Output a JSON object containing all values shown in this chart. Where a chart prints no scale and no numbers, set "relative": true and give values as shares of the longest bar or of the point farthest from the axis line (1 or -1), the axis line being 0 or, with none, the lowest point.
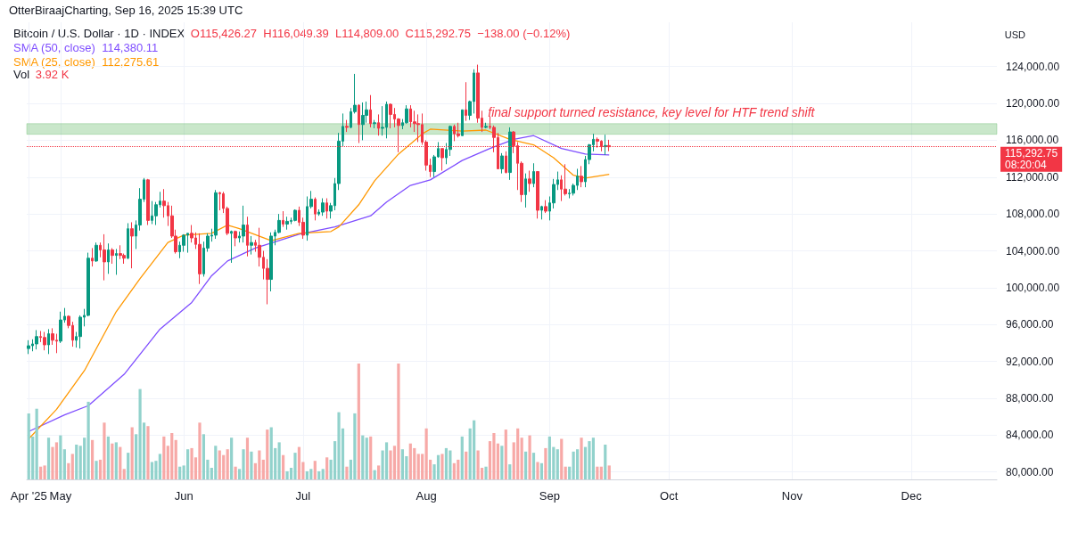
{
  "chart_data": [
    {
      "type": "candlestick",
      "title": "Bitcoin / U.S. Dollar · 1D · INDEX",
      "subtitle": "OtterBiraajCharting, Sep 16, 2025 15:39 UTC",
      "ylabel": "USD",
      "x": [
        "2025-04-23",
        "2025-04-24",
        "2025-04-25",
        "2025-04-26",
        "2025-04-27",
        "2025-04-28",
        "2025-04-29",
        "2025-04-30",
        "2025-05-01",
        "2025-05-02",
        "2025-05-03",
        "2025-05-04",
        "2025-05-05",
        "2025-05-06",
        "2025-05-07",
        "2025-05-08",
        "2025-05-09",
        "2025-05-10",
        "2025-05-11",
        "2025-05-12",
        "2025-05-13",
        "2025-05-14",
        "2025-05-15",
        "2025-05-16",
        "2025-05-17",
        "2025-05-18",
        "2025-05-19",
        "2025-05-20",
        "2025-05-21",
        "2025-05-22",
        "2025-05-23",
        "2025-05-24",
        "2025-05-25",
        "2025-05-26",
        "2025-05-27",
        "2025-05-28",
        "2025-05-29",
        "2025-05-30",
        "2025-05-31",
        "2025-06-01",
        "2025-06-02",
        "2025-06-03",
        "2025-06-04",
        "2025-06-05",
        "2025-06-06",
        "2025-06-07",
        "2025-06-08",
        "2025-06-09",
        "2025-06-10",
        "2025-06-11",
        "2025-06-12",
        "2025-06-13",
        "2025-06-14",
        "2025-06-15",
        "2025-06-16",
        "2025-06-17",
        "2025-06-18",
        "2025-06-19",
        "2025-06-20",
        "2025-06-21",
        "2025-06-22",
        "2025-06-23",
        "2025-06-24",
        "2025-06-25",
        "2025-06-26",
        "2025-06-27",
        "2025-06-28",
        "2025-06-29",
        "2025-06-30",
        "2025-07-01",
        "2025-07-02",
        "2025-07-03",
        "2025-07-04",
        "2025-07-05",
        "2025-07-06",
        "2025-07-07",
        "2025-07-08",
        "2025-07-09",
        "2025-07-10",
        "2025-07-11",
        "2025-07-12",
        "2025-07-13",
        "2025-07-14",
        "2025-07-15",
        "2025-07-16",
        "2025-07-17",
        "2025-07-18",
        "2025-07-19",
        "2025-07-20",
        "2025-07-21",
        "2025-07-22",
        "2025-07-23",
        "2025-07-24",
        "2025-07-25",
        "2025-07-26",
        "2025-07-27",
        "2025-07-28",
        "2025-07-29",
        "2025-07-30",
        "2025-07-31",
        "2025-08-01",
        "2025-08-02",
        "2025-08-03",
        "2025-08-04",
        "2025-08-05",
        "2025-08-06",
        "2025-08-07",
        "2025-08-08",
        "2025-08-09",
        "2025-08-10",
        "2025-08-11",
        "2025-08-12",
        "2025-08-13",
        "2025-08-14",
        "2025-08-15",
        "2025-08-16",
        "2025-08-17",
        "2025-08-18",
        "2025-08-19",
        "2025-08-20",
        "2025-08-21",
        "2025-08-22",
        "2025-08-23",
        "2025-08-24",
        "2025-08-25",
        "2025-08-26",
        "2025-08-27",
        "2025-08-28",
        "2025-08-29",
        "2025-08-30",
        "2025-08-31",
        "2025-09-01",
        "2025-09-02",
        "2025-09-03",
        "2025-09-04",
        "2025-09-05",
        "2025-09-06",
        "2025-09-07",
        "2025-09-08",
        "2025-09-09",
        "2025-09-10",
        "2025-09-11",
        "2025-09-12",
        "2025-09-13",
        "2025-09-14",
        "2025-09-15",
        "2025-09-16"
      ],
      "ohlc": [
        [
          93400,
          94300,
          92800,
          93700
        ],
        [
          93700,
          94400,
          93100,
          93900
        ],
        [
          93900,
          95400,
          93300,
          94700
        ],
        [
          94700,
          95300,
          94100,
          94600
        ],
        [
          94600,
          95200,
          93200,
          93800
        ],
        [
          93800,
          95500,
          92800,
          95000
        ],
        [
          95000,
          95600,
          93800,
          94300
        ],
        [
          94300,
          95000,
          92900,
          94200
        ],
        [
          94200,
          97400,
          94000,
          96500
        ],
        [
          96500,
          97800,
          96200,
          96900
        ],
        [
          96900,
          97000,
          95600,
          95900
        ],
        [
          95900,
          96300,
          93600,
          94300
        ],
        [
          94300,
          95200,
          93500,
          94700
        ],
        [
          94700,
          97000,
          93400,
          96800
        ],
        [
          96800,
          97700,
          95800,
          97000
        ],
        [
          97000,
          103800,
          96900,
          103200
        ],
        [
          103200,
          104300,
          102300,
          102900
        ],
        [
          102900,
          104900,
          102800,
          104600
        ],
        [
          104600,
          104900,
          103300,
          104100
        ],
        [
          104100,
          105800,
          100800,
          102800
        ],
        [
          102800,
          104800,
          101500,
          104100
        ],
        [
          104100,
          104300,
          102600,
          103500
        ],
        [
          103500,
          104200,
          101400,
          103700
        ],
        [
          103700,
          104600,
          103100,
          103500
        ],
        [
          103500,
          103700,
          102600,
          103200
        ],
        [
          103200,
          107000,
          103100,
          106400
        ],
        [
          106400,
          107100,
          102100,
          105600
        ],
        [
          105600,
          107300,
          104200,
          106800
        ],
        [
          106800,
          110800,
          106200,
          109600
        ],
        [
          109600,
          111900,
          109300,
          111700
        ],
        [
          111700,
          111800,
          106800,
          107300
        ],
        [
          107300,
          109400,
          106900,
          107800
        ],
        [
          107800,
          109300,
          106800,
          109000
        ],
        [
          109000,
          110400,
          108700,
          109400
        ],
        [
          109400,
          110700,
          107600,
          108900
        ],
        [
          108900,
          109300,
          106700,
          107800
        ],
        [
          107800,
          108900,
          105400,
          105600
        ],
        [
          105600,
          106300,
          103700,
          103900
        ],
        [
          103900,
          105000,
          103200,
          104600
        ],
        [
          104600,
          105800,
          103900,
          105700
        ],
        [
          105700,
          105900,
          103800,
          105900
        ],
        [
          105900,
          106800,
          104900,
          105400
        ],
        [
          105400,
          106000,
          104200,
          104700
        ],
        [
          104700,
          105900,
          100400,
          101500
        ],
        [
          101500,
          105000,
          101200,
          104300
        ],
        [
          104300,
          105900,
          103900,
          105600
        ],
        [
          105600,
          106400,
          105000,
          105700
        ],
        [
          105700,
          110600,
          105300,
          110300
        ],
        [
          110300,
          110400,
          108400,
          110200
        ],
        [
          110200,
          110400,
          108100,
          108600
        ],
        [
          108600,
          108800,
          105700,
          105900
        ],
        [
          105900,
          106200,
          102700,
          106100
        ],
        [
          106100,
          106200,
          104500,
          105400
        ],
        [
          105400,
          106100,
          104900,
          105600
        ],
        [
          105600,
          108900,
          104900,
          106800
        ],
        [
          106800,
          107700,
          103400,
          104600
        ],
        [
          104600,
          105600,
          103600,
          104900
        ],
        [
          104900,
          105200,
          103900,
          104600
        ],
        [
          104600,
          106500,
          102300,
          103300
        ],
        [
          103300,
          104000,
          100900,
          102100
        ],
        [
          102100,
          103100,
          98200,
          100900
        ],
        [
          100900,
          106000,
          99600,
          105600
        ],
        [
          105600,
          106300,
          104600,
          106000
        ],
        [
          106000,
          108000,
          105900,
          107300
        ],
        [
          107300,
          108300,
          106600,
          106900
        ],
        [
          106900,
          107700,
          106300,
          107200
        ],
        [
          107200,
          107600,
          106900,
          107300
        ],
        [
          107300,
          108500,
          107200,
          108400
        ],
        [
          108400,
          108800,
          106700,
          107100
        ],
        [
          107100,
          107600,
          105300,
          105700
        ],
        [
          105700,
          109900,
          105100,
          108800
        ],
        [
          108800,
          110500,
          108600,
          109600
        ],
        [
          109600,
          109800,
          107300,
          108000
        ],
        [
          108000,
          108500,
          107800,
          108200
        ],
        [
          108200,
          109700,
          107800,
          109200
        ],
        [
          109200,
          109700,
          107500,
          108300
        ],
        [
          108300,
          109200,
          107500,
          108900
        ],
        [
          108900,
          111900,
          108400,
          111300
        ],
        [
          111300,
          116800,
          110600,
          115900
        ],
        [
          115900,
          118900,
          115300,
          117500
        ],
        [
          117500,
          118200,
          116900,
          117400
        ],
        [
          117400,
          119500,
          117300,
          119100
        ],
        [
          119100,
          123200,
          118900,
          119800
        ],
        [
          119800,
          119900,
          115700,
          117700
        ],
        [
          117700,
          120100,
          116000,
          118700
        ],
        [
          118700,
          120200,
          117900,
          119300
        ],
        [
          119300,
          120900,
          117400,
          117800
        ],
        [
          117800,
          118200,
          117300,
          117900
        ],
        [
          117900,
          118800,
          116500,
          117300
        ],
        [
          117300,
          119700,
          116500,
          117400
        ],
        [
          117400,
          120200,
          116200,
          119900
        ],
        [
          119900,
          120000,
          117300,
          118800
        ],
        [
          118800,
          119500,
          117400,
          118300
        ],
        [
          118300,
          118400,
          114700,
          117600
        ],
        [
          117600,
          118300,
          117200,
          117900
        ],
        [
          117900,
          119800,
          117800,
          119400
        ],
        [
          119400,
          119800,
          117400,
          118000
        ],
        [
          118000,
          119200,
          116900,
          117800
        ],
        [
          117800,
          118800,
          115800,
          117700
        ],
        [
          117700,
          118900,
          115500,
          115800
        ],
        [
          115800,
          116000,
          112700,
          113300
        ],
        [
          113300,
          114000,
          112000,
          112600
        ],
        [
          112600,
          114400,
          112000,
          114200
        ],
        [
          114200,
          115800,
          114100,
          115100
        ],
        [
          115100,
          115100,
          112700,
          114100
        ],
        [
          114100,
          115700,
          113400,
          115000
        ],
        [
          115000,
          117600,
          114300,
          117500
        ],
        [
          117500,
          117700,
          115900,
          116700
        ],
        [
          116700,
          117900,
          116300,
          116500
        ],
        [
          116500,
          119300,
          116500,
          119300
        ],
        [
          119300,
          122300,
          118100,
          118700
        ],
        [
          118700,
          120300,
          118200,
          120200
        ],
        [
          120200,
          123700,
          118900,
          123300
        ],
        [
          123300,
          124200,
          117900,
          118400
        ],
        [
          118400,
          119200,
          116900,
          117400
        ],
        [
          117400,
          117900,
          117300,
          117500
        ],
        [
          117500,
          118600,
          117200,
          117400
        ],
        [
          117400,
          117600,
          114700,
          116300
        ],
        [
          116300,
          116800,
          112900,
          112900
        ],
        [
          112900,
          114600,
          112400,
          114300
        ],
        [
          114300,
          114800,
          112400,
          112500
        ],
        [
          112500,
          117400,
          111700,
          116900
        ],
        [
          116900,
          117000,
          114600,
          115400
        ],
        [
          115400,
          115800,
          110600,
          113500
        ],
        [
          113500,
          113700,
          109300,
          110100
        ],
        [
          110100,
          112400,
          108700,
          111800
        ],
        [
          111800,
          112700,
          110400,
          111300
        ],
        [
          111300,
          113500,
          110900,
          112600
        ],
        [
          112600,
          112600,
          107500,
          108400
        ],
        [
          108400,
          108900,
          107400,
          108800
        ],
        [
          108800,
          109500,
          108100,
          108300
        ],
        [
          108300,
          109900,
          107300,
          109200
        ],
        [
          109200,
          111800,
          108600,
          111200
        ],
        [
          111200,
          112600,
          110600,
          111700
        ],
        [
          111700,
          112200,
          109400,
          110700
        ],
        [
          110700,
          113400,
          110000,
          110200
        ],
        [
          110200,
          110700,
          109700,
          110250
        ],
        [
          110250,
          111300,
          110000,
          111100
        ],
        [
          111100,
          112900,
          110600,
          112100
        ],
        [
          112100,
          113200,
          110900,
          111500
        ],
        [
          111500,
          114300,
          110900,
          113900
        ],
        [
          113900,
          115600,
          113400,
          115500
        ],
        [
          115500,
          116700,
          114800,
          116100
        ],
        [
          116100,
          116300,
          115200,
          115900
        ],
        [
          115900,
          116000,
          114800,
          115300
        ],
        [
          115300,
          116600,
          114400,
          115426.27
        ],
        [
          115426.27,
          116049.39,
          114809,
          115292.75
        ]
      ],
      "series": [
        {
          "type": "line",
          "name": "SMA (50, close)",
          "color": "#7e4dff",
          "x": [
            "2025-04-23",
            "2025-05-02",
            "2025-05-08",
            "2025-05-17",
            "2025-05-26",
            "2025-06-03",
            "2025-06-08",
            "2025-06-12",
            "2025-06-19",
            "2025-06-30",
            "2025-07-09",
            "2025-07-18",
            "2025-07-22",
            "2025-07-28",
            "2025-08-02",
            "2025-08-10",
            "2025-08-17",
            "2025-08-23",
            "2025-08-28",
            "2025-09-04",
            "2025-09-10",
            "2025-09-16"
          ],
          "values": [
            84400,
            86200,
            87200,
            90600,
            95500,
            98400,
            101300,
            102900,
            104300,
            105800,
            106600,
            107800,
            109300,
            111100,
            111700,
            113800,
            115100,
            116100,
            116500,
            115100,
            114500,
            114400
          ]
        },
        {
          "type": "line",
          "name": "SMA (25, close)",
          "color": "#ff9800",
          "x": [
            "2025-04-23",
            "2025-04-30",
            "2025-05-07",
            "2025-05-15",
            "2025-05-21",
            "2025-05-28",
            "2025-06-01",
            "2025-06-08",
            "2025-06-12",
            "2025-06-15",
            "2025-06-23",
            "2025-06-30",
            "2025-07-08",
            "2025-07-10",
            "2025-07-15",
            "2025-07-19",
            "2025-07-25",
            "2025-07-31",
            "2025-08-02",
            "2025-08-10",
            "2025-08-16",
            "2025-08-22",
            "2025-08-28",
            "2025-09-02",
            "2025-09-07",
            "2025-09-10",
            "2025-09-16"
          ],
          "values": [
            83600,
            86800,
            91000,
            97400,
            101000,
            104900,
            105700,
            105900,
            106800,
            106400,
            105100,
            105900,
            106100,
            106600,
            109000,
            111600,
            114500,
            116700,
            117200,
            117000,
            117100,
            116100,
            115500,
            114100,
            112200,
            111900,
            112300
          ]
        }
      ],
      "xlim": [
        "2025-04-22T12:00",
        "2025-12-22T12:00"
      ],
      "tick_labels": "y",
      "xticks": [
        {
          "value": "2025-04-23",
          "label": null
        },
        {
          "value": "2025-05-01",
          "label": null
        },
        {
          "value": "2025-06-01",
          "label": null
        },
        {
          "value": "2025-07-01",
          "label": null
        },
        {
          "value": "2025-08-01",
          "label": null
        },
        {
          "value": "2025-09-01",
          "label": null
        },
        {
          "value": "2025-10-01",
          "label": null
        },
        {
          "value": "2025-11-01",
          "label": null
        },
        {
          "value": "2025-12-01",
          "label": null
        }
      ],
      "ylim": [
        79200,
        128800
      ],
      "yticks": [
        {
          "value": 80000,
          "label": "80,000.00"
        },
        {
          "value": 84000,
          "label": "84,000.00"
        },
        {
          "value": 88000,
          "label": "88,000.00"
        },
        {
          "value": 92000,
          "label": "92,000.00"
        },
        {
          "value": 96000,
          "label": "96,000.00"
        },
        {
          "value": 100000,
          "label": "100,000.00"
        },
        {
          "value": 104000,
          "label": "104,000.00"
        },
        {
          "value": 108000,
          "label": "108,000.00"
        },
        {
          "value": 112000,
          "label": "112,000.00"
        },
        {
          "value": 116000,
          "label": "116,000.00"
        },
        {
          "value": 120000,
          "label": "120,000.00"
        },
        {
          "value": 124000,
          "label": "124,000.00"
        }
      ],
      "grid": true,
      "legend": "top left",
      "marker": "none",
      "ref_lines": [
        {
          "axis": "y",
          "value": 115292.75,
          "label": "115,292.75",
          "color": "#f23645",
          "line_style": "dotted"
        }
      ],
      "bands": [
        {
          "axis": "y",
          "from": 116650,
          "to": 117800,
          "label": "final support turned resistance, key level for HTF trend shift",
          "color": "#4caf50"
        }
      ],
      "annotations": [
        "O115,426.27  H116,049.39  L114,809.00  C115,292.75  −138.00 (−0.12%)",
        "114,380.11",
        "112,275.61",
        "08:20:04"
      ]
    },
    {
      "type": "bar",
      "title": "Vol",
      "relative": true,
      "tick_labels": "x",
      "xlim": [
        "2025-04-22T12:00",
        "2025-12-22T12:00"
      ],
      "xticks": [
        {
          "value": "2025-04-23",
          "label": "Apr '25"
        },
        {
          "value": "2025-05-01",
          "label": "May"
        },
        {
          "value": "2025-06-01",
          "label": "Jun"
        },
        {
          "value": "2025-07-01",
          "label": "Jul"
        },
        {
          "value": "2025-08-01",
          "label": "Aug"
        },
        {
          "value": "2025-09-01",
          "label": "Sep"
        },
        {
          "value": "2025-10-01",
          "label": "Oct"
        },
        {
          "value": "2025-11-01",
          "label": "Nov"
        },
        {
          "value": "2025-12-01",
          "label": "Dec"
        }
      ],
      "x": [
        "2025-04-23",
        "2025-04-24",
        "2025-04-25",
        "2025-04-26",
        "2025-04-27",
        "2025-04-28",
        "2025-04-29",
        "2025-04-30",
        "2025-05-01",
        "2025-05-02",
        "2025-05-03",
        "2025-05-04",
        "2025-05-05",
        "2025-05-06",
        "2025-05-07",
        "2025-05-08",
        "2025-05-09",
        "2025-05-10",
        "2025-05-11",
        "2025-05-12",
        "2025-05-13",
        "2025-05-14",
        "2025-05-15",
        "2025-05-16",
        "2025-05-17",
        "2025-05-18",
        "2025-05-19",
        "2025-05-20",
        "2025-05-21",
        "2025-05-22",
        "2025-05-23",
        "2025-05-24",
        "2025-05-25",
        "2025-05-26",
        "2025-05-27",
        "2025-05-28",
        "2025-05-29",
        "2025-05-30",
        "2025-05-31",
        "2025-06-01",
        "2025-06-02",
        "2025-06-03",
        "2025-06-04",
        "2025-06-05",
        "2025-06-06",
        "2025-06-07",
        "2025-06-08",
        "2025-06-09",
        "2025-06-10",
        "2025-06-11",
        "2025-06-12",
        "2025-06-13",
        "2025-06-14",
        "2025-06-15",
        "2025-06-16",
        "2025-06-17",
        "2025-06-18",
        "2025-06-19",
        "2025-06-20",
        "2025-06-21",
        "2025-06-22",
        "2025-06-23",
        "2025-06-24",
        "2025-06-25",
        "2025-06-26",
        "2025-06-27",
        "2025-06-28",
        "2025-06-29",
        "2025-06-30",
        "2025-07-01",
        "2025-07-02",
        "2025-07-03",
        "2025-07-04",
        "2025-07-05",
        "2025-07-06",
        "2025-07-07",
        "2025-07-08",
        "2025-07-09",
        "2025-07-10",
        "2025-07-11",
        "2025-07-12",
        "2025-07-13",
        "2025-07-14",
        "2025-07-15",
        "2025-07-16",
        "2025-07-17",
        "2025-07-18",
        "2025-07-19",
        "2025-07-20",
        "2025-07-21",
        "2025-07-22",
        "2025-07-23",
        "2025-07-24",
        "2025-07-25",
        "2025-07-26",
        "2025-07-27",
        "2025-07-28",
        "2025-07-29",
        "2025-07-30",
        "2025-07-31",
        "2025-08-01",
        "2025-08-02",
        "2025-08-03",
        "2025-08-04",
        "2025-08-05",
        "2025-08-06",
        "2025-08-07",
        "2025-08-08",
        "2025-08-09",
        "2025-08-10",
        "2025-08-11",
        "2025-08-12",
        "2025-08-13",
        "2025-08-14",
        "2025-08-15",
        "2025-08-16",
        "2025-08-17",
        "2025-08-18",
        "2025-08-19",
        "2025-08-20",
        "2025-08-21",
        "2025-08-22",
        "2025-08-23",
        "2025-08-24",
        "2025-08-25",
        "2025-08-26",
        "2025-08-27",
        "2025-08-28",
        "2025-08-29",
        "2025-08-30",
        "2025-08-31",
        "2025-09-01",
        "2025-09-02",
        "2025-09-03",
        "2025-09-04",
        "2025-09-05",
        "2025-09-06",
        "2025-09-07",
        "2025-09-08",
        "2025-09-09",
        "2025-09-10",
        "2025-09-11",
        "2025-09-12",
        "2025-09-13",
        "2025-09-14",
        "2025-09-15",
        "2025-09-16"
      ],
      "values": [
        0.57,
        0.37,
        0.61,
        0.11,
        0.12,
        0.36,
        0.28,
        0.32,
        0.38,
        0.26,
        0.14,
        0.22,
        0.3,
        0.29,
        0.36,
        0.67,
        0.34,
        0.16,
        0.17,
        0.49,
        0.37,
        0.31,
        0.32,
        0.28,
        0.09,
        0.23,
        0.45,
        0.39,
        0.78,
        0.49,
        0.46,
        0.15,
        0.16,
        0.22,
        0.37,
        0.29,
        0.4,
        0.34,
        0.11,
        0.12,
        0.26,
        0.27,
        0.19,
        0.49,
        0.39,
        0.17,
        0.1,
        0.29,
        0.25,
        0.21,
        0.26,
        0.36,
        0.11,
        0.09,
        0.26,
        0.36,
        0.24,
        0.14,
        0.25,
        0.17,
        0.43,
        0.45,
        0.27,
        0.32,
        0.21,
        0.07,
        0.1,
        0.23,
        0.28,
        0.15,
        0.07,
        0.09,
        0.16,
        0.07,
        0.09,
        0.19,
        0.17,
        0.33,
        0.58,
        0.44,
        0.11,
        0.17,
        0.57,
        1,
        0.38,
        0.36,
        0.37,
        0.08,
        0.12,
        0.25,
        0.32,
        0.25,
        0.29,
        1,
        0.26,
        0.2,
        0.31,
        0.27,
        0.22,
        0.22,
        0.44,
        0.17,
        0.13,
        0.21,
        0.22,
        0.27,
        0.25,
        0.14,
        0.17,
        0.37,
        0.24,
        0.44,
        0.51,
        0.25,
        0.1,
        0.11,
        0.33,
        0.4,
        0.31,
        0.29,
        0.43,
        0.13,
        0.32,
        0.44,
        0.36,
        0.24,
        0.38,
        0.23,
        0.15,
        0.14,
        0.27,
        0.37,
        0.28,
        0.26,
        0.35,
        0.11,
        0.11,
        0.24,
        0.26,
        0.36,
        0.28,
        0.33,
        0.36,
        0.11,
        0.11,
        0.3,
        0.12
      ],
      "colors": [
        "#92d2cc",
        "#92d2cc",
        "#92d2cc",
        "#f7a9a7",
        "#f7a9a7",
        "#92d2cc",
        "#f7a9a7",
        "#f7a9a7",
        "#92d2cc",
        "#92d2cc",
        "#f7a9a7",
        "#f7a9a7",
        "#92d2cc",
        "#92d2cc",
        "#92d2cc",
        "#92d2cc",
        "#f7a9a7",
        "#92d2cc",
        "#f7a9a7",
        "#f7a9a7",
        "#92d2cc",
        "#f7a9a7",
        "#92d2cc",
        "#f7a9a7",
        "#f7a9a7",
        "#92d2cc",
        "#f7a9a7",
        "#92d2cc",
        "#92d2cc",
        "#92d2cc",
        "#f7a9a7",
        "#92d2cc",
        "#92d2cc",
        "#92d2cc",
        "#f7a9a7",
        "#f7a9a7",
        "#f7a9a7",
        "#f7a9a7",
        "#92d2cc",
        "#92d2cc",
        "#92d2cc",
        "#f7a9a7",
        "#f7a9a7",
        "#f7a9a7",
        "#92d2cc",
        "#92d2cc",
        "#92d2cc",
        "#92d2cc",
        "#f7a9a7",
        "#f7a9a7",
        "#f7a9a7",
        "#92d2cc",
        "#f7a9a7",
        "#92d2cc",
        "#92d2cc",
        "#f7a9a7",
        "#92d2cc",
        "#f7a9a7",
        "#f7a9a7",
        "#f7a9a7",
        "#f7a9a7",
        "#92d2cc",
        "#92d2cc",
        "#92d2cc",
        "#f7a9a7",
        "#92d2cc",
        "#92d2cc",
        "#92d2cc",
        "#f7a9a7",
        "#f7a9a7",
        "#92d2cc",
        "#92d2cc",
        "#f7a9a7",
        "#92d2cc",
        "#92d2cc",
        "#f7a9a7",
        "#92d2cc",
        "#92d2cc",
        "#92d2cc",
        "#92d2cc",
        "#f7a9a7",
        "#92d2cc",
        "#92d2cc",
        "#f7a9a7",
        "#92d2cc",
        "#92d2cc",
        "#f7a9a7",
        "#92d2cc",
        "#f7a9a7",
        "#92d2cc",
        "#92d2cc",
        "#f7a9a7",
        "#f7a9a7",
        "#f7a9a7",
        "#92d2cc",
        "#92d2cc",
        "#f7a9a7",
        "#f7a9a7",
        "#f7a9a7",
        "#f7a9a7",
        "#f7a9a7",
        "#f7a9a7",
        "#92d2cc",
        "#92d2cc",
        "#f7a9a7",
        "#92d2cc",
        "#92d2cc",
        "#f7a9a7",
        "#f7a9a7",
        "#92d2cc",
        "#f7a9a7",
        "#92d2cc",
        "#92d2cc",
        "#f7a9a7",
        "#f7a9a7",
        "#92d2cc",
        "#f7a9a7",
        "#f7a9a7",
        "#f7a9a7",
        "#92d2cc",
        "#f7a9a7",
        "#92d2cc",
        "#f7a9a7",
        "#f7a9a7",
        "#f7a9a7",
        "#92d2cc",
        "#f7a9a7",
        "#92d2cc",
        "#f7a9a7",
        "#92d2cc",
        "#f7a9a7",
        "#92d2cc",
        "#92d2cc",
        "#92d2cc",
        "#f7a9a7",
        "#f7a9a7",
        "#92d2cc",
        "#92d2cc",
        "#92d2cc",
        "#f7a9a7",
        "#92d2cc",
        "#92d2cc",
        "#92d2cc",
        "#f7a9a7",
        "#f7a9a7",
        "#92d2cc",
        "#f7a9a7"
      ],
      "annotations": [
        "3.92 K"
      ]
    }
  ]
}
